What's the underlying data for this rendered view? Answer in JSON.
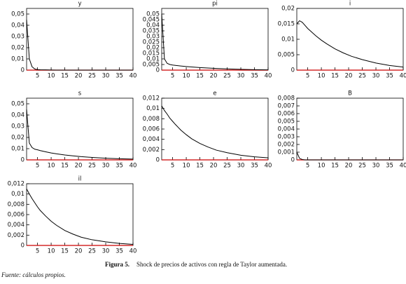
{
  "chart_data": [
    {
      "type": "line",
      "title": "y",
      "color": "#000000",
      "zero_line_color": "#cc0000",
      "x": [
        1,
        2,
        3,
        4,
        5,
        6,
        8,
        10,
        12,
        15,
        18,
        21,
        25,
        30,
        35,
        40
      ],
      "values": [
        0.045,
        0.01,
        0.003,
        0.001,
        0.0005,
        0.0003,
        0.0002,
        0.0001,
        0,
        0,
        0,
        0,
        0,
        0,
        0,
        0
      ],
      "xlim": [
        1,
        40
      ],
      "xticks": [
        5,
        10,
        15,
        20,
        25,
        30,
        35,
        40
      ],
      "ylim": [
        0,
        0.055
      ],
      "yticks": [
        0,
        {
          "value": 0.01,
          "label": "0,01"
        },
        {
          "value": 0.02,
          "label": "0,02"
        },
        {
          "value": 0.03,
          "label": "0,03"
        },
        {
          "value": 0.04,
          "label": "0,04"
        },
        {
          "value": 0.05,
          "label": "0,05"
        }
      ]
    },
    {
      "type": "line",
      "title": "pi",
      "color": "#000000",
      "zero_line_color": "#cc0000",
      "x": [
        1,
        2,
        3,
        4,
        5,
        6,
        8,
        10,
        12,
        15,
        18,
        21,
        25,
        30,
        35,
        40
      ],
      "values": [
        0.05,
        0.01,
        0.006,
        0.005,
        0.0045,
        0.0042,
        0.0037,
        0.0032,
        0.0028,
        0.0023,
        0.0019,
        0.0015,
        0.0011,
        0.0007,
        0.0004,
        0.0002
      ],
      "xlim": [
        1,
        40
      ],
      "xticks": [
        5,
        10,
        15,
        20,
        25,
        30,
        35,
        40
      ],
      "ylim": [
        0,
        0.055
      ],
      "yticks": [
        0,
        {
          "value": 0.005,
          "label": "0,005"
        },
        {
          "value": 0.01,
          "label": "0,01"
        },
        {
          "value": 0.015,
          "label": "0,015"
        },
        {
          "value": 0.02,
          "label": "0,02"
        },
        {
          "value": 0.025,
          "label": "0,025"
        },
        {
          "value": 0.03,
          "label": "0,03"
        },
        {
          "value": 0.035,
          "label": "0,035"
        },
        {
          "value": 0.04,
          "label": "0,04"
        },
        {
          "value": 0.045,
          "label": "0,045"
        },
        {
          "value": 0.05,
          "label": "0,05"
        }
      ]
    },
    {
      "type": "line",
      "title": "i",
      "color": "#000000",
      "zero_line_color": "#cc0000",
      "x": [
        1,
        2,
        3,
        4,
        5,
        6,
        8,
        10,
        12,
        15,
        18,
        21,
        25,
        30,
        35,
        40
      ],
      "values": [
        0.015,
        0.016,
        0.0155,
        0.0145,
        0.0135,
        0.0127,
        0.0111,
        0.0097,
        0.0085,
        0.0069,
        0.0056,
        0.0045,
        0.0034,
        0.0023,
        0.0015,
        0.001
      ],
      "xlim": [
        1,
        40
      ],
      "xticks": [
        5,
        10,
        15,
        20,
        25,
        30,
        35,
        40
      ],
      "ylim": [
        0,
        0.02
      ],
      "yticks": [
        0,
        {
          "value": 0.005,
          "label": "0,005"
        },
        {
          "value": 0.01,
          "label": "0,01"
        },
        {
          "value": 0.015,
          "label": "0,015"
        },
        {
          "value": 0.02,
          "label": "0,02"
        }
      ]
    },
    {
      "type": "line",
      "title": "s",
      "color": "#000000",
      "zero_line_color": "#cc0000",
      "x": [
        1,
        2,
        3,
        4,
        5,
        6,
        8,
        10,
        12,
        15,
        18,
        21,
        25,
        30,
        35,
        40
      ],
      "values": [
        0.045,
        0.015,
        0.011,
        0.0095,
        0.009,
        0.0083,
        0.0072,
        0.0062,
        0.0054,
        0.0044,
        0.0036,
        0.0029,
        0.0022,
        0.0015,
        0.001,
        0.0007
      ],
      "xlim": [
        1,
        40
      ],
      "xticks": [
        5,
        10,
        15,
        20,
        25,
        30,
        35,
        40
      ],
      "ylim": [
        0,
        0.055
      ],
      "yticks": [
        0,
        {
          "value": 0.01,
          "label": "0,01"
        },
        {
          "value": 0.02,
          "label": "0,02"
        },
        {
          "value": 0.03,
          "label": "0,03"
        },
        {
          "value": 0.04,
          "label": "0,04"
        },
        {
          "value": 0.05,
          "label": "0,05"
        }
      ]
    },
    {
      "type": "line",
      "title": "e",
      "color": "#000000",
      "zero_line_color": "#cc0000",
      "x": [
        1,
        2,
        3,
        4,
        5,
        6,
        8,
        10,
        12,
        15,
        18,
        21,
        25,
        30,
        35,
        40
      ],
      "values": [
        0.0105,
        0.0096,
        0.0089,
        0.0081,
        0.0075,
        0.0069,
        0.0058,
        0.0049,
        0.0041,
        0.0032,
        0.0025,
        0.0019,
        0.0014,
        0.0009,
        0.0006,
        0.0004
      ],
      "xlim": [
        1,
        40
      ],
      "xticks": [
        5,
        10,
        15,
        20,
        25,
        30,
        35,
        40
      ],
      "ylim": [
        0,
        0.012
      ],
      "yticks": [
        0,
        {
          "value": 0.002,
          "label": "0,002"
        },
        {
          "value": 0.004,
          "label": "0,004"
        },
        {
          "value": 0.006,
          "label": "0,006"
        },
        {
          "value": 0.008,
          "label": "0,008"
        },
        {
          "value": 0.01,
          "label": "0,01"
        },
        {
          "value": 0.012,
          "label": "0,012"
        }
      ]
    },
    {
      "type": "line",
      "title": "B",
      "color": "#000000",
      "zero_line_color": "#cc0000",
      "x": [
        1,
        2,
        3,
        4,
        5,
        6,
        8,
        10,
        12,
        15,
        18,
        21,
        25,
        30,
        35,
        40
      ],
      "values": [
        0.001,
        0.0002,
        5e-05,
        0,
        0,
        0,
        0,
        0,
        0,
        0,
        0,
        0,
        0,
        0,
        0,
        0
      ],
      "xlim": [
        1,
        40
      ],
      "xticks": [
        5,
        10,
        15,
        20,
        25,
        30,
        35,
        40
      ],
      "ylim": [
        0,
        0.008
      ],
      "yticks": [
        0,
        {
          "value": 0.001,
          "label": "0,001"
        },
        {
          "value": 0.002,
          "label": "0,002"
        },
        {
          "value": 0.003,
          "label": "0,003"
        },
        {
          "value": 0.004,
          "label": "0,004"
        },
        {
          "value": 0.005,
          "label": "0,005"
        },
        {
          "value": 0.006,
          "label": "0,006"
        },
        {
          "value": 0.007,
          "label": "0,007"
        },
        {
          "value": 0.008,
          "label": "0,008"
        }
      ]
    },
    {
      "type": "line",
      "title": "il",
      "color": "#000000",
      "zero_line_color": "#cc0000",
      "x": [
        1,
        2,
        3,
        4,
        5,
        6,
        8,
        10,
        12,
        15,
        18,
        21,
        25,
        30,
        35,
        40
      ],
      "values": [
        0.011,
        0.01,
        0.0091,
        0.0083,
        0.0075,
        0.0068,
        0.0057,
        0.0047,
        0.0039,
        0.0029,
        0.0022,
        0.0016,
        0.0011,
        0.0007,
        0.0004,
        0.0002
      ],
      "xlim": [
        1,
        40
      ],
      "xticks": [
        5,
        10,
        15,
        20,
        25,
        30,
        35,
        40
      ],
      "ylim": [
        0,
        0.012
      ],
      "yticks": [
        0,
        {
          "value": 0.002,
          "label": "0,002"
        },
        {
          "value": 0.004,
          "label": "0,004"
        },
        {
          "value": 0.006,
          "label": "0,006"
        },
        {
          "value": 0.008,
          "label": "0,008"
        },
        {
          "value": 0.01,
          "label": "0,01"
        },
        {
          "value": 0.012,
          "label": "0,012"
        }
      ]
    }
  ],
  "caption": {
    "label": "Figura 5.",
    "text": "Shock de precios de activos con regla de Taylor aumentada."
  },
  "source": "Fuente: cálculos propios."
}
